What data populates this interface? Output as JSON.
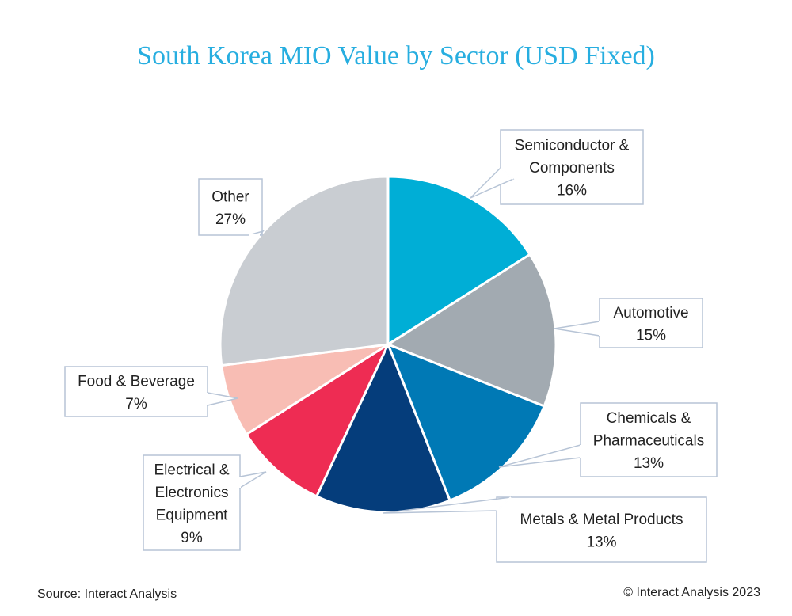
{
  "title": "South Korea MIO Value by Sector (USD Fixed)",
  "source": "Source: Interact Analysis",
  "copyright": "© Interact Analysis 2023",
  "chart_data": {
    "type": "pie",
    "title": "South Korea MIO Value by Sector (USD Fixed)",
    "unit": "%",
    "slices": [
      {
        "label": "Semiconductor & Components",
        "label_lines": [
          "Semiconductor &",
          "Components"
        ],
        "value": 16,
        "value_label": "16%",
        "color": "#00aed6"
      },
      {
        "label": "Automotive",
        "label_lines": [
          "Automotive"
        ],
        "value": 15,
        "value_label": "15%",
        "color": "#a2aab1"
      },
      {
        "label": "Chemicals & Pharmaceuticals",
        "label_lines": [
          "Chemicals &",
          "Pharmaceuticals"
        ],
        "value": 13,
        "value_label": "13%",
        "color": "#0079b5"
      },
      {
        "label": "Metals & Metal Products",
        "label_lines": [
          "Metals & Metal Products"
        ],
        "value": 13,
        "value_label": "13%",
        "color": "#053d7b"
      },
      {
        "label": "Electrical & Electronics Equipment",
        "label_lines": [
          "Electrical &",
          "Electronics",
          "Equipment"
        ],
        "value": 9,
        "value_label": "9%",
        "color": "#ee2c53"
      },
      {
        "label": "Food & Beverage",
        "label_lines": [
          "Food & Beverage"
        ],
        "value": 7,
        "value_label": "7%",
        "color": "#f8bdb4"
      },
      {
        "label": "Other",
        "label_lines": [
          "Other"
        ],
        "value": 27,
        "value_label": "27%",
        "color": "#c9cdd2"
      }
    ]
  }
}
